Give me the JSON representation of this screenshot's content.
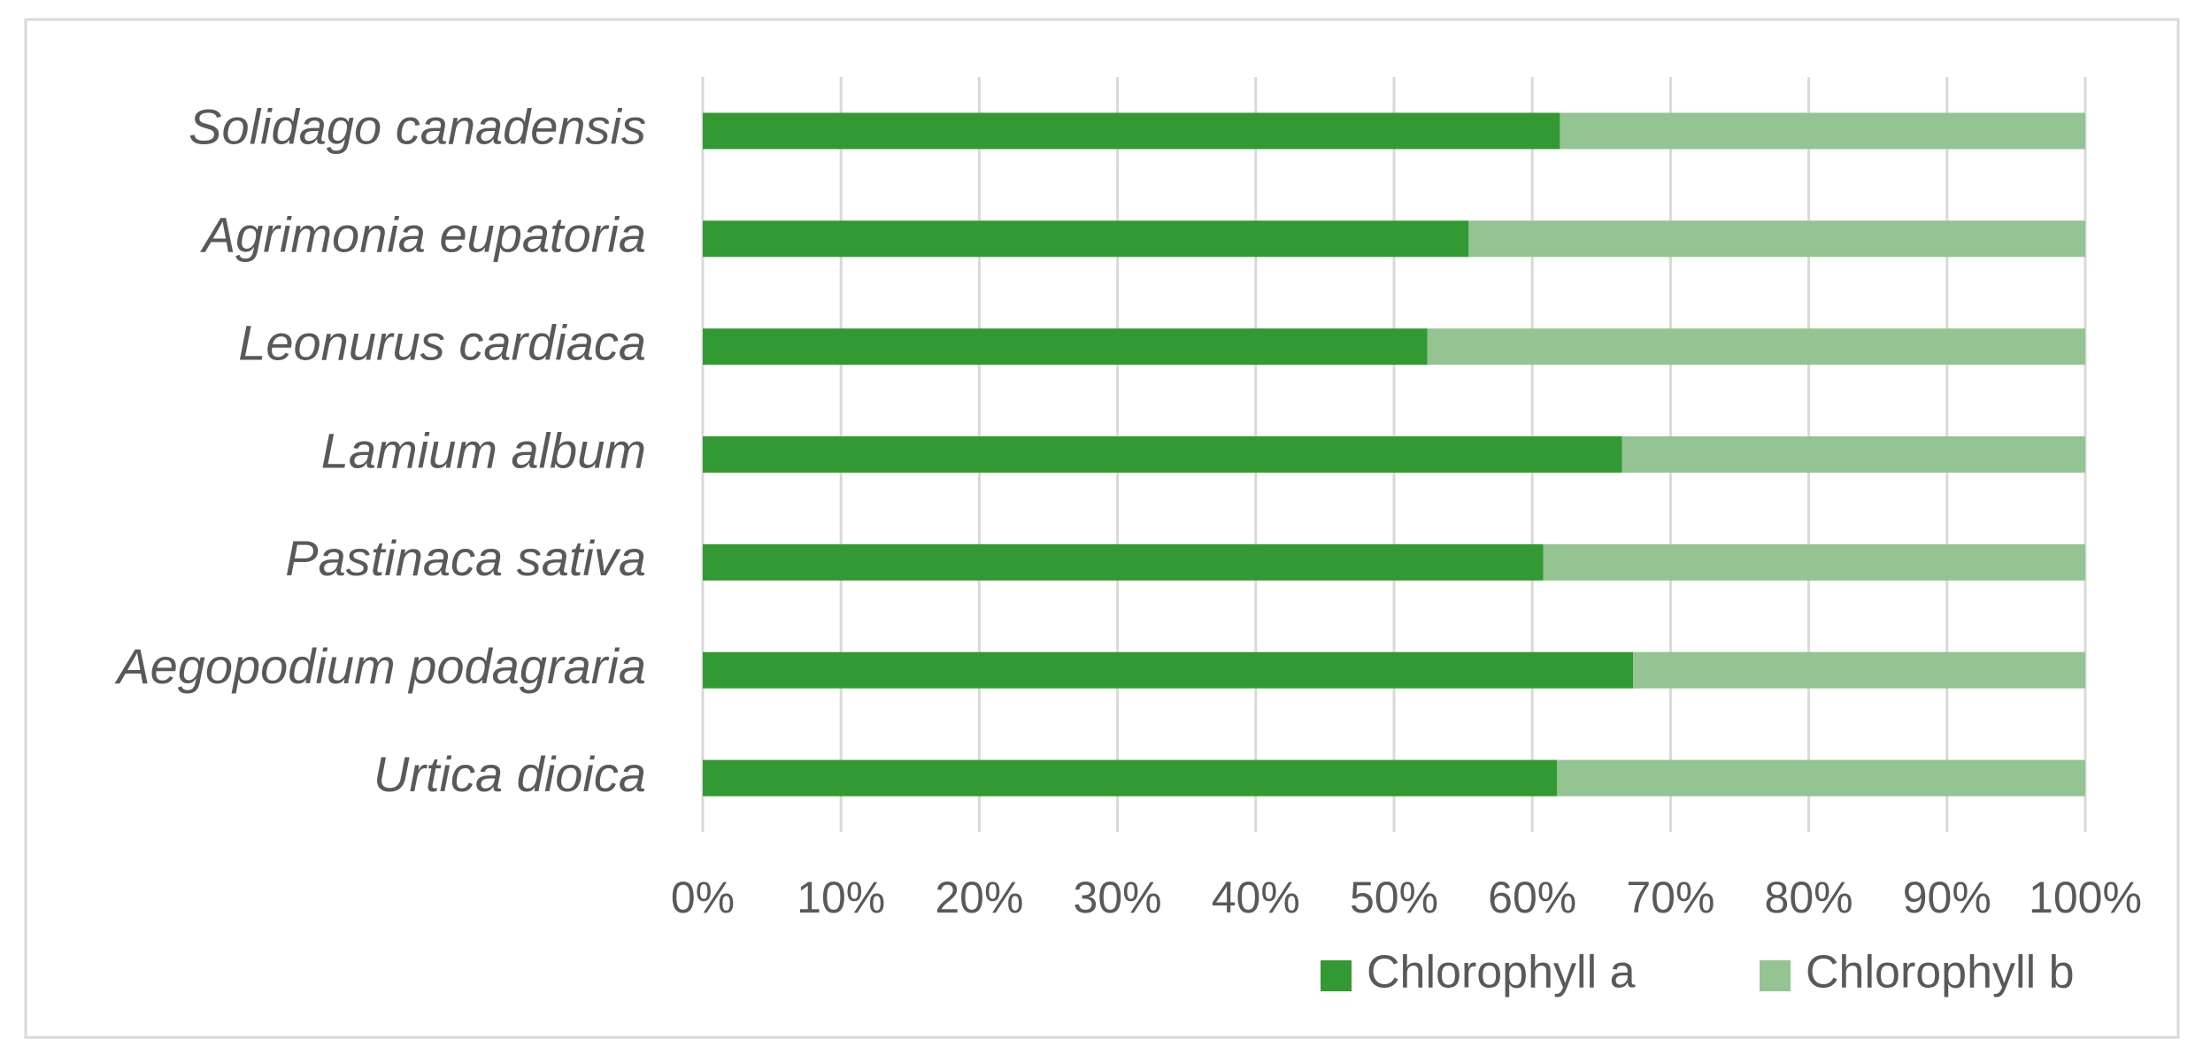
{
  "chart_data": {
    "type": "stacked-bar-horizontal",
    "categories": [
      "Urtica dioica",
      "Aegopodium podagraria",
      "Pastinaca sativa",
      "Lamium album",
      "Leonurus cardiaca",
      "Agrimonia eupatoria",
      "Solidago canadensis"
    ],
    "series": [
      {
        "name": "Chlorophyll a",
        "color": "#339933",
        "values": [
          61.8,
          67.3,
          60.8,
          66.5,
          52.4,
          55.4,
          62.0
        ]
      },
      {
        "name": "Chlorophyll b",
        "color": "#93c492",
        "values": [
          38.2,
          32.7,
          39.2,
          33.5,
          47.6,
          44.6,
          38.0
        ]
      }
    ],
    "xlim": [
      0,
      100
    ],
    "xticks": [
      {
        "value": 0,
        "label": "0%"
      },
      {
        "value": 10,
        "label": "10%"
      },
      {
        "value": 20,
        "label": "20%"
      },
      {
        "value": 30,
        "label": "30%"
      },
      {
        "value": 40,
        "label": "40%"
      },
      {
        "value": 50,
        "label": "50%"
      },
      {
        "value": 60,
        "label": "60%"
      },
      {
        "value": 70,
        "label": "70%"
      },
      {
        "value": 80,
        "label": "80%"
      },
      {
        "value": 90,
        "label": "90%"
      },
      {
        "value": 100,
        "label": "100%"
      }
    ],
    "grid": true,
    "legend": "bottom-right"
  }
}
